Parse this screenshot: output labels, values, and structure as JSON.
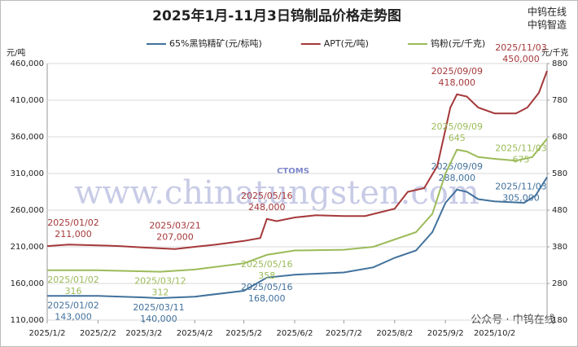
{
  "chart_data": {
    "type": "line",
    "title": "2025年1月-11月3日钨制品价格走势图",
    "y_label": "元/吨",
    "y2_label": "元/千克",
    "brand": [
      "中钨在线",
      "中钨智造"
    ],
    "watermark": "www.chinatungsten.com",
    "logo_text": "CTOMS",
    "footer": "公众号 · 中钨在线",
    "xlim": [
      "2025/1/2",
      "2025/11/3"
    ],
    "xticks": [
      "2025/1/2",
      "2025/2/2",
      "2025/3/2",
      "2025/4/2",
      "2025/5/2",
      "2025/6/2",
      "2025/7/2",
      "2025/8/2",
      "2025/9/2",
      "2025/10/2"
    ],
    "ylim": [
      110000,
      460000
    ],
    "yticks": [
      {
        "value": 110000,
        "label": "110,000"
      },
      {
        "value": 160000,
        "label": "160,000"
      },
      {
        "value": 210000,
        "label": "210,000"
      },
      {
        "value": 260000,
        "label": "260,000"
      },
      {
        "value": 310000,
        "label": "310,000"
      },
      {
        "value": 360000,
        "label": "360,000"
      },
      {
        "value": 410000,
        "label": "410,000"
      },
      {
        "value": 460000,
        "label": "460,000"
      }
    ],
    "y2lim": [
      180,
      880
    ],
    "y2ticks": [
      180,
      280,
      380,
      480,
      580,
      680,
      780,
      880
    ],
    "grid": true,
    "series": [
      {
        "name": "65%黑钨精矿(元/标吨)",
        "color": "#41719c",
        "x": [
          "2025/1/2",
          "2025/2/2",
          "2025/3/2",
          "2025/3/11",
          "2025/4/2",
          "2025/5/2",
          "2025/5/16",
          "2025/6/2",
          "2025/7/2",
          "2025/7/20",
          "2025/8/2",
          "2025/8/15",
          "2025/8/25",
          "2025/9/2",
          "2025/9/9",
          "2025/9/15",
          "2025/9/22",
          "2025/10/2",
          "2025/10/20",
          "2025/10/27",
          "2025/11/3"
        ],
        "values": [
          143000,
          143000,
          141000,
          140000,
          142000,
          150000,
          168000,
          172000,
          175000,
          182000,
          195000,
          205000,
          230000,
          270000,
          288000,
          285000,
          275000,
          272000,
          270000,
          280000,
          305000
        ],
        "value_labels": [
          "143,000",
          null,
          null,
          "140,000",
          null,
          null,
          "168,000",
          null,
          null,
          null,
          null,
          null,
          null,
          null,
          "288,000",
          null,
          null,
          null,
          null,
          null,
          "305,000"
        ],
        "date_labels": [
          "2025/01/02",
          null,
          null,
          "2025/03/11",
          null,
          null,
          "2025/05/16",
          null,
          null,
          null,
          null,
          null,
          null,
          null,
          "2025/09/09",
          null,
          null,
          null,
          null,
          null,
          "2025/11/03"
        ]
      },
      {
        "name": "APT(元/吨)",
        "color": "#a5383a",
        "x": [
          "2025/1/2",
          "2025/1/15",
          "2025/2/2",
          "2025/2/15",
          "2025/3/2",
          "2025/3/21",
          "2025/4/2",
          "2025/4/15",
          "2025/5/2",
          "2025/5/12",
          "2025/5/16",
          "2025/5/22",
          "2025/6/2",
          "2025/6/15",
          "2025/7/2",
          "2025/7/15",
          "2025/8/2",
          "2025/8/10",
          "2025/8/20",
          "2025/8/28",
          "2025/9/2",
          "2025/9/5",
          "2025/9/9",
          "2025/9/15",
          "2025/9/22",
          "2025/10/2",
          "2025/10/15",
          "2025/10/22",
          "2025/10/29",
          "2025/11/3"
        ],
        "values": [
          211000,
          213000,
          212000,
          211000,
          209000,
          207000,
          210000,
          213000,
          218000,
          222000,
          248000,
          245000,
          250000,
          253000,
          252000,
          252000,
          262000,
          285000,
          290000,
          320000,
          370000,
          400000,
          418000,
          415000,
          400000,
          392000,
          392000,
          400000,
          420000,
          450000
        ],
        "value_labels": [
          "211,000",
          null,
          null,
          null,
          null,
          "207,000",
          null,
          null,
          null,
          null,
          "248,000",
          null,
          null,
          null,
          null,
          null,
          null,
          null,
          null,
          null,
          null,
          null,
          "418,000",
          null,
          null,
          null,
          null,
          null,
          null,
          "450,000"
        ],
        "date_labels": [
          "2025/01/02",
          null,
          null,
          null,
          null,
          "2025/03/21",
          null,
          null,
          null,
          null,
          "2025/05/16",
          null,
          null,
          null,
          null,
          null,
          null,
          null,
          null,
          null,
          null,
          null,
          "2025/09/09",
          null,
          null,
          null,
          null,
          null,
          null,
          "2025/11/03"
        ]
      },
      {
        "name": "钨粉(元/千克)",
        "color": "#9bbb59",
        "axis": "y2",
        "x": [
          "2025/1/2",
          "2025/2/2",
          "2025/3/2",
          "2025/3/12",
          "2025/4/2",
          "2025/5/2",
          "2025/5/16",
          "2025/6/2",
          "2025/7/2",
          "2025/7/20",
          "2025/8/2",
          "2025/8/15",
          "2025/8/25",
          "2025/9/2",
          "2025/9/9",
          "2025/9/15",
          "2025/9/22",
          "2025/10/2",
          "2025/10/15",
          "2025/10/25",
          "2025/11/3"
        ],
        "values": [
          316,
          316,
          313,
          312,
          318,
          335,
          358,
          370,
          372,
          380,
          400,
          420,
          470,
          580,
          645,
          640,
          625,
          620,
          615,
          625,
          675
        ],
        "value_labels": [
          null,
          null,
          null,
          null,
          null,
          null,
          null,
          null,
          null,
          null,
          null,
          null,
          null,
          null,
          null,
          null,
          null,
          null,
          null,
          null,
          null
        ],
        "date_labels": [
          "2025/01/02",
          null,
          null,
          "2025/03/12",
          null,
          null,
          "2025/05/16",
          null,
          null,
          null,
          null,
          null,
          null,
          null,
          "2025/09/09",
          null,
          null,
          null,
          null,
          null,
          "2025/11/03"
        ]
      }
    ]
  }
}
